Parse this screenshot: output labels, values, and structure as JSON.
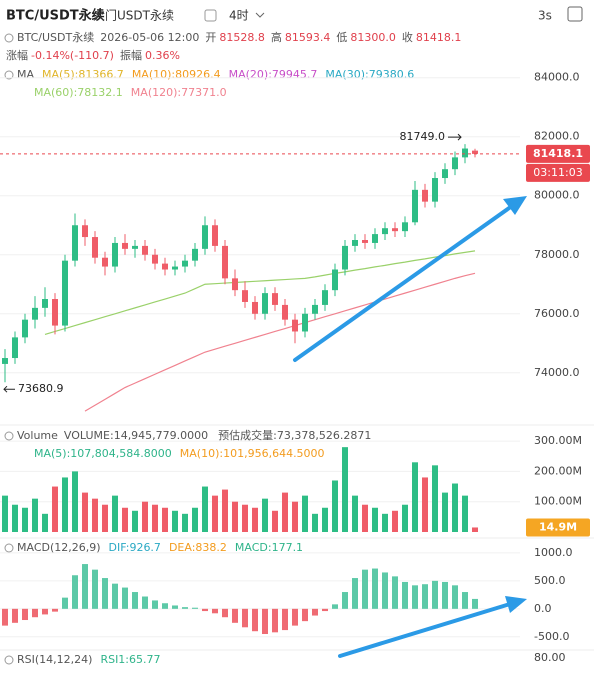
{
  "header": {
    "title": "BTC/USDT永续",
    "subtitle": "大门USDT永续",
    "interval": "4时",
    "refresh": "3s"
  },
  "info": {
    "symbol": "BTC/USDT永续",
    "time": "2026-05-06 12:00",
    "open_label": "开",
    "open": "81528.8",
    "high_label": "高",
    "high": "81593.4",
    "low_label": "低",
    "low": "81300.0",
    "close_label": "收",
    "close": "81418.1",
    "change_label": "涨幅",
    "change": "-0.14%(-110.7)",
    "amplitude_label": "振幅",
    "amplitude": "0.36%"
  },
  "ma_legend": {
    "title": "MA",
    "items": [
      {
        "text": "MA(5):81366.7",
        "color": "#e0b52a"
      },
      {
        "text": "MA(10):80926.4",
        "color": "#f39c1f"
      },
      {
        "text": "MA(20):79945.7",
        "color": "#c84fc8"
      },
      {
        "text": "MA(30):79380.6",
        "color": "#2aa9c4"
      },
      {
        "text": "MA(60):78132.1",
        "color": "#9ad16a"
      },
      {
        "text": "MA(120):77371.0",
        "color": "#f0828f"
      }
    ]
  },
  "volume_legend": {
    "title": "Volume",
    "volume": "VOLUME:14,945,779.0000",
    "estimate": "预估成交量:73,378,526.2871",
    "items": [
      {
        "text": "MA(5):107,804,584.8000",
        "color": "#2fb48a"
      },
      {
        "text": "MA(10):101,956,644.5000",
        "color": "#f39c1f"
      }
    ]
  },
  "macd_legend": {
    "title": "MACD(12,26,9)",
    "items": [
      {
        "text": "DIF:926.7",
        "color": "#2aa9c4"
      },
      {
        "text": "DEA:838.2",
        "color": "#f39c1f"
      },
      {
        "text": "MACD:177.1",
        "color": "#2fb48a"
      }
    ]
  },
  "rsi_legend": {
    "title": "RSI(14,12,24)",
    "items": [
      {
        "text": "RSI1:65.77",
        "color": "#2fb48a"
      }
    ],
    "tick": "80.00"
  },
  "chart_data": [
    {
      "type": "candlestick",
      "up_color": "#2ebd85",
      "down_color": "#ef5d68",
      "ylim": [
        72400,
        84600
      ],
      "yticks": [
        {
          "value": 74000,
          "label": "74000.0"
        },
        {
          "value": 76000,
          "label": "76000.0"
        },
        {
          "value": 78000,
          "label": "78000.0"
        },
        {
          "value": 80000,
          "label": "80000.0"
        },
        {
          "value": 82000,
          "label": "82000.0"
        },
        {
          "value": 84000,
          "label": "84000.0"
        }
      ],
      "grid": true,
      "candles": [
        [
          74300,
          74800,
          73680.9,
          74500
        ],
        [
          74500,
          75400,
          74300,
          75200
        ],
        [
          75200,
          76000,
          75000,
          75800
        ],
        [
          75800,
          76600,
          75500,
          76200
        ],
        [
          76200,
          76900,
          75900,
          76500
        ],
        [
          76500,
          76700,
          75300,
          75600
        ],
        [
          75600,
          78000,
          75400,
          77800
        ],
        [
          77800,
          79400,
          77600,
          79000
        ],
        [
          79000,
          79200,
          78300,
          78600
        ],
        [
          78600,
          78800,
          77700,
          77900
        ],
        [
          77900,
          78100,
          77300,
          77600
        ],
        [
          77600,
          78600,
          77400,
          78400
        ],
        [
          78400,
          78700,
          78000,
          78200
        ],
        [
          78200,
          78500,
          77900,
          78300
        ],
        [
          78300,
          78500,
          77800,
          78000
        ],
        [
          78000,
          78200,
          77500,
          77700
        ],
        [
          77700,
          77900,
          77300,
          77500
        ],
        [
          77500,
          77800,
          77300,
          77600
        ],
        [
          77600,
          78000,
          77400,
          77800
        ],
        [
          77800,
          78400,
          77600,
          78200
        ],
        [
          78200,
          79300,
          78000,
          79000
        ],
        [
          79000,
          79200,
          78100,
          78300
        ],
        [
          78300,
          78500,
          77000,
          77200
        ],
        [
          77200,
          77500,
          76600,
          76800
        ],
        [
          76800,
          77100,
          76200,
          76400
        ],
        [
          76400,
          76600,
          75800,
          76000
        ],
        [
          76000,
          76900,
          75800,
          76700
        ],
        [
          76700,
          76900,
          76100,
          76300
        ],
        [
          76300,
          76500,
          75600,
          75800
        ],
        [
          75800,
          76000,
          75000,
          75400
        ],
        [
          75400,
          76200,
          75200,
          76000
        ],
        [
          76000,
          76500,
          75800,
          76300
        ],
        [
          76300,
          77000,
          76100,
          76800
        ],
        [
          76800,
          77700,
          76600,
          77500
        ],
        [
          77500,
          78500,
          77300,
          78300
        ],
        [
          78300,
          78700,
          78100,
          78500
        ],
        [
          78500,
          78700,
          78200,
          78400
        ],
        [
          78400,
          78900,
          78200,
          78700
        ],
        [
          78700,
          79100,
          78500,
          78900
        ],
        [
          78900,
          79100,
          78600,
          78800
        ],
        [
          78800,
          79300,
          78600,
          79100
        ],
        [
          79100,
          80500,
          79000,
          80200
        ],
        [
          80200,
          80400,
          79600,
          79800
        ],
        [
          79800,
          80800,
          79600,
          80600
        ],
        [
          80600,
          81100,
          80400,
          80900
        ],
        [
          80900,
          81500,
          80700,
          81300
        ],
        [
          81300,
          81749.0,
          81100,
          81600
        ],
        [
          81528.8,
          81593.4,
          81300.0,
          81418.1
        ]
      ],
      "lines": [
        {
          "color": "#9ad16a",
          "values": [
            null,
            null,
            null,
            null,
            75300,
            75400,
            75500,
            75600,
            75700,
            75800,
            75900,
            76000,
            76100,
            76200,
            76300,
            76400,
            76500,
            76600,
            76700,
            76850,
            77000,
            77020,
            77040,
            77060,
            77080,
            77100,
            77120,
            77140,
            77160,
            77180,
            77200,
            77250,
            77310,
            77370,
            77420,
            77480,
            77530,
            77590,
            77640,
            77700,
            77750,
            77810,
            77860,
            77920,
            77970,
            78030,
            78080,
            78132.1
          ]
        },
        {
          "color": "#f0828f",
          "values": [
            null,
            null,
            null,
            null,
            null,
            null,
            null,
            null,
            72700,
            72900,
            73100,
            73300,
            73500,
            73650,
            73800,
            73950,
            74100,
            74250,
            74400,
            74550,
            74700,
            74800,
            74900,
            75000,
            75100,
            75200,
            75300,
            75400,
            75500,
            75600,
            75700,
            75800,
            75900,
            76000,
            76100,
            76200,
            76300,
            76400,
            76500,
            76600,
            76700,
            76800,
            76900,
            77000,
            77100,
            77200,
            77290,
            77371.0
          ]
        }
      ],
      "last_price": {
        "value": 81418.1,
        "label": "81418.1"
      },
      "countdown": "03:11:03",
      "annotations": [
        {
          "value": 81749.0,
          "label": "81749.0"
        },
        {
          "value": 73680.9,
          "label": "73680.9"
        }
      ]
    },
    {
      "type": "volume",
      "ylim": [
        0,
        330000000
      ],
      "yticks": [
        {
          "value": 100000000,
          "label": "100.00M"
        },
        {
          "value": 200000000,
          "label": "200.00M"
        },
        {
          "value": 300000000,
          "label": "300.00M"
        }
      ],
      "values": [
        120000000,
        90000000,
        80000000,
        110000000,
        60000000,
        150000000,
        180000000,
        200000000,
        130000000,
        110000000,
        90000000,
        120000000,
        80000000,
        70000000,
        100000000,
        90000000,
        80000000,
        70000000,
        60000000,
        80000000,
        150000000,
        120000000,
        140000000,
        100000000,
        90000000,
        80000000,
        110000000,
        70000000,
        130000000,
        100000000,
        120000000,
        60000000,
        80000000,
        170000000,
        280000000,
        120000000,
        90000000,
        80000000,
        60000000,
        70000000,
        90000000,
        230000000,
        180000000,
        220000000,
        130000000,
        160000000,
        120000000,
        14945779
      ],
      "last_label": "14.9M",
      "label_color": "#f5a623"
    },
    {
      "type": "macd",
      "up_color": "#5cc9a7",
      "down_color": "#ef6b73",
      "ylim": [
        -700,
        1230
      ],
      "yticks": [
        {
          "value": -500,
          "label": "-500.0"
        },
        {
          "value": 0,
          "label": "0.0"
        },
        {
          "value": 500,
          "label": "500.0"
        },
        {
          "value": 1000,
          "label": "1000.0"
        }
      ],
      "values": [
        -300,
        -250,
        -200,
        -150,
        -100,
        -50,
        200,
        600,
        800,
        700,
        550,
        450,
        380,
        300,
        220,
        150,
        100,
        60,
        30,
        20,
        -40,
        -80,
        -150,
        -250,
        -330,
        -400,
        -450,
        -420,
        -380,
        -300,
        -220,
        -120,
        -40,
        80,
        300,
        550,
        700,
        720,
        650,
        580,
        480,
        420,
        440,
        500,
        480,
        420,
        300,
        177.1
      ]
    }
  ]
}
